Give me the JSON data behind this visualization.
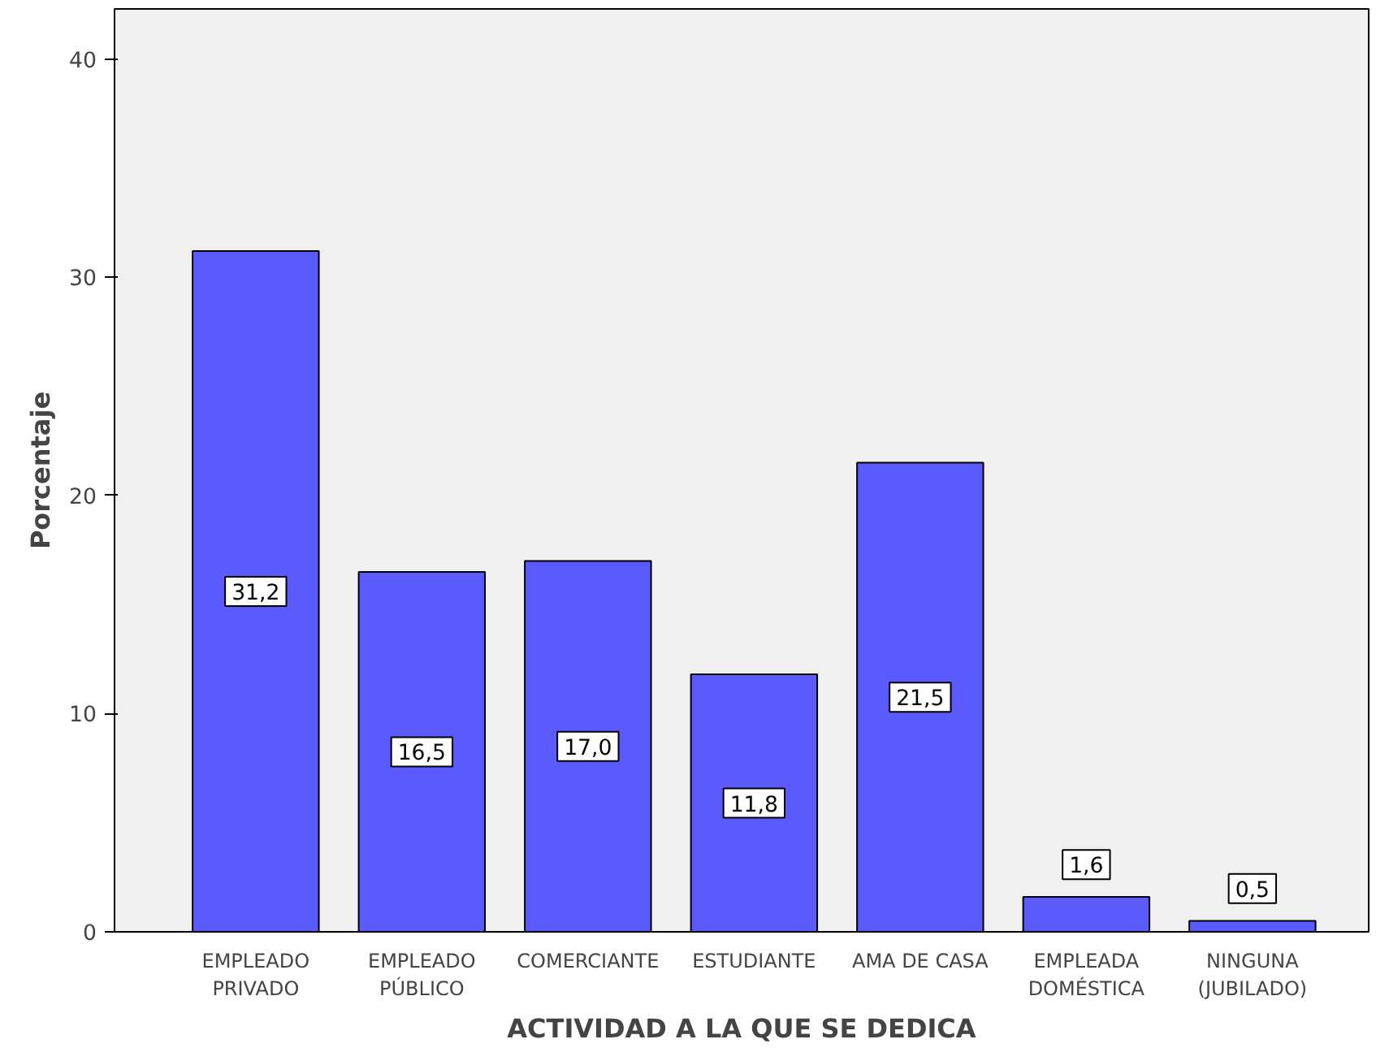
{
  "chart_data": {
    "type": "bar",
    "xlabel": "ACTIVIDAD A LA QUE SE DEDICA",
    "ylabel": "Porcentaje",
    "categories": [
      "EMPLEADO\nPRIVADO",
      "EMPLEADO\nPÚBLICO",
      "COMERCIANTE",
      "ESTUDIANTE",
      "AMA DE CASA",
      "EMPLEADA\nDOMÉSTICA",
      "NINGUNA\n(JUBILADO)"
    ],
    "values": [
      31.2,
      16.5,
      17.0,
      11.8,
      21.5,
      1.6,
      0.5
    ],
    "value_labels": [
      "31,2",
      "16,5",
      "17,0",
      "11,8",
      "21,5",
      "1,6",
      "0,5"
    ],
    "color": "#5a5aff",
    "ylim": [
      0,
      42.3
    ],
    "yticks": [
      0,
      10,
      20,
      30,
      40
    ],
    "grid": false
  }
}
